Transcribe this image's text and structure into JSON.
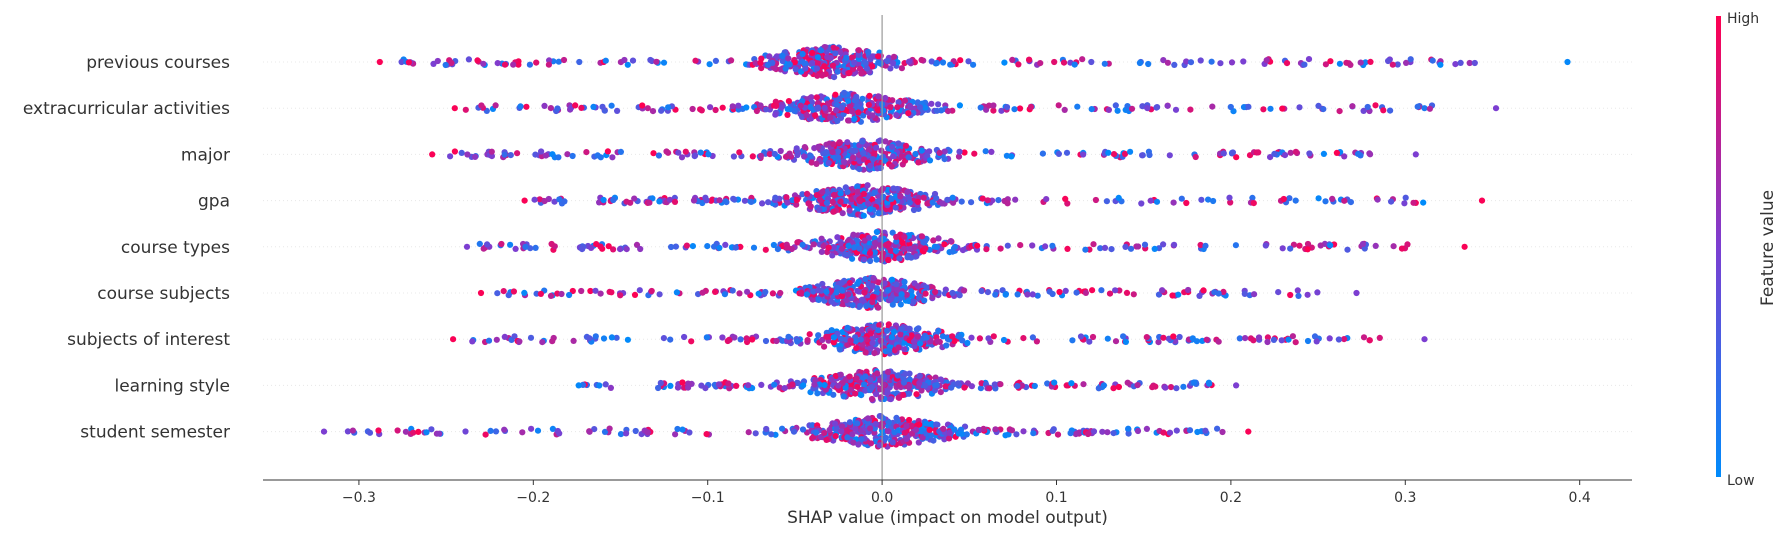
{
  "chart_data": {
    "type": "scatter",
    "subtype": "shap-beeswarm",
    "title": "",
    "xlabel": "SHAP value (impact on model output)",
    "xlim": [
      -0.355,
      0.43
    ],
    "x_ticks": [
      -0.3,
      -0.2,
      -0.1,
      0.0,
      0.1,
      0.2,
      0.3,
      0.4
    ],
    "x_tick_labels": [
      "−0.3",
      "−0.2",
      "−0.1",
      "0.0",
      "0.1",
      "0.2",
      "0.3",
      "0.4"
    ],
    "features": [
      "previous courses",
      "extracurricular activities",
      "major",
      "gpa",
      "course types",
      "course subjects",
      "subjects of interest",
      "learning style",
      "student semester"
    ],
    "feature_summary": [
      {
        "feature": "previous courses",
        "min": -0.288,
        "max": 0.393,
        "dense_center": -0.03
      },
      {
        "feature": "extracurricular activities",
        "min": -0.245,
        "max": 0.352,
        "dense_center": -0.02
      },
      {
        "feature": "major",
        "min": -0.258,
        "max": 0.306,
        "dense_center": -0.01
      },
      {
        "feature": "gpa",
        "min": -0.205,
        "max": 0.344,
        "dense_center": -0.01
      },
      {
        "feature": "course types",
        "min": -0.238,
        "max": 0.334,
        "dense_center": 0.0
      },
      {
        "feature": "course subjects",
        "min": -0.23,
        "max": 0.272,
        "dense_center": -0.005
      },
      {
        "feature": "subjects of interest",
        "min": -0.246,
        "max": 0.311,
        "dense_center": 0.0
      },
      {
        "feature": "learning style",
        "min": -0.174,
        "max": 0.203,
        "dense_center": -0.002
      },
      {
        "feature": "student semester",
        "min": -0.32,
        "max": 0.21,
        "dense_center": 0.0
      }
    ],
    "outliers": [
      {
        "feature": "previous courses",
        "x": -0.288,
        "color_value": "high"
      },
      {
        "feature": "previous courses",
        "x": 0.393,
        "color_value": "low"
      },
      {
        "feature": "extracurricular activities",
        "x": -0.245,
        "color_value": "high"
      },
      {
        "feature": "extracurricular activities",
        "x": 0.352,
        "color_value": "mid"
      },
      {
        "feature": "major",
        "x": -0.258,
        "color_value": "high"
      },
      {
        "feature": "major",
        "x": 0.306,
        "color_value": "mid"
      },
      {
        "feature": "gpa",
        "x": -0.205,
        "color_value": "high"
      },
      {
        "feature": "gpa",
        "x": 0.344,
        "color_value": "high"
      },
      {
        "feature": "course types",
        "x": -0.238,
        "color_value": "mid"
      },
      {
        "feature": "course types",
        "x": 0.334,
        "color_value": "high"
      },
      {
        "feature": "course subjects",
        "x": -0.23,
        "color_value": "high"
      },
      {
        "feature": "course subjects",
        "x": 0.272,
        "color_value": "mid"
      },
      {
        "feature": "subjects of interest",
        "x": -0.246,
        "color_value": "high"
      },
      {
        "feature": "subjects of interest",
        "x": 0.311,
        "color_value": "mid"
      },
      {
        "feature": "learning style",
        "x": -0.174,
        "color_value": "low"
      },
      {
        "feature": "learning style",
        "x": 0.203,
        "color_value": "mid"
      },
      {
        "feature": "student semester",
        "x": -0.32,
        "color_value": "mid"
      },
      {
        "feature": "student semester",
        "x": 0.21,
        "color_value": "high"
      }
    ],
    "colorbar": {
      "label": "Feature value",
      "high_label": "High",
      "low_label": "Low",
      "low_color": "#008bfb",
      "mid_color": "#7c3ed1",
      "high_color": "#ff0051"
    },
    "zero_line": 0.0,
    "grid": false,
    "legend": "colorbar-right"
  }
}
